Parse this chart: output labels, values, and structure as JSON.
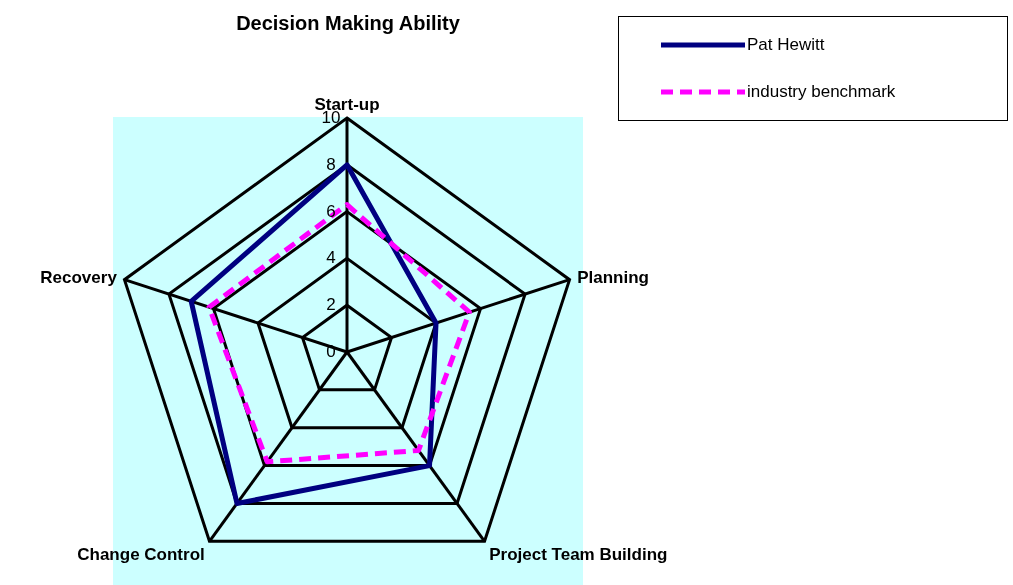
{
  "chart_data": {
    "type": "radar",
    "title": "Decision Making Ability",
    "categories": [
      "Start-up",
      "Planning",
      "Project Team Building",
      "Change Control",
      "Recovery"
    ],
    "series": [
      {
        "name": "Pat Hewitt",
        "color": "#000080",
        "values": [
          8,
          4,
          6,
          8,
          7
        ],
        "line_style": "solid"
      },
      {
        "name": "industry benchmark",
        "color": "#ff00ff",
        "values": [
          6.3,
          5.5,
          5.2,
          5.8,
          6.2
        ],
        "line_style": "dashed"
      }
    ],
    "ylim": [
      0,
      10
    ],
    "yticks": [
      0,
      2,
      4,
      6,
      8,
      10
    ],
    "grid": true,
    "legend": "top right",
    "marker": "none"
  }
}
